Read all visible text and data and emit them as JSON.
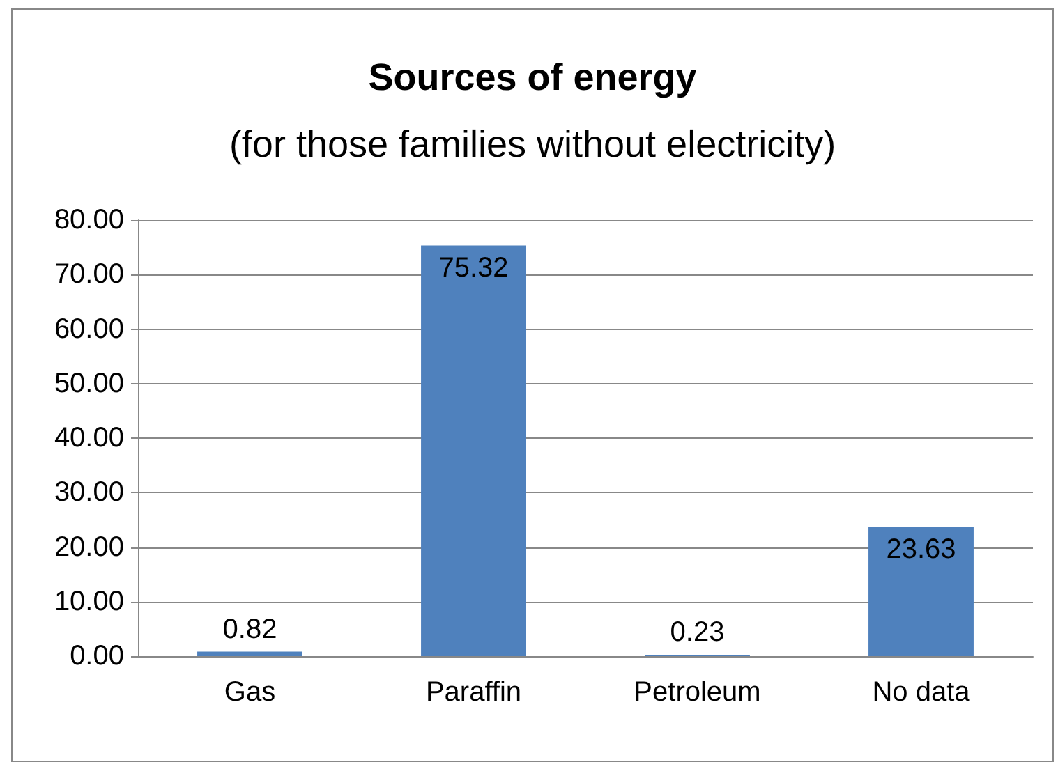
{
  "chart_data": {
    "type": "bar",
    "title": "Sources of energy",
    "subtitle": "(for those families without electricity)",
    "categories": [
      "Gas",
      "Paraffin",
      "Petroleum",
      "No data"
    ],
    "values": [
      0.82,
      75.32,
      0.23,
      23.63
    ],
    "color": "#4f81bd",
    "ylim": [
      0,
      80
    ],
    "yticks": [
      {
        "value": 0,
        "label": "0.00"
      },
      {
        "value": 10,
        "label": "10.00"
      },
      {
        "value": 20,
        "label": "20.00"
      },
      {
        "value": 30,
        "label": "30.00"
      },
      {
        "value": 40,
        "label": "40.00"
      },
      {
        "value": 50,
        "label": "50.00"
      },
      {
        "value": 60,
        "label": "60.00"
      },
      {
        "value": 70,
        "label": "70.00"
      },
      {
        "value": 80,
        "label": "80.00"
      }
    ],
    "grid": "y",
    "data_labels": true
  }
}
